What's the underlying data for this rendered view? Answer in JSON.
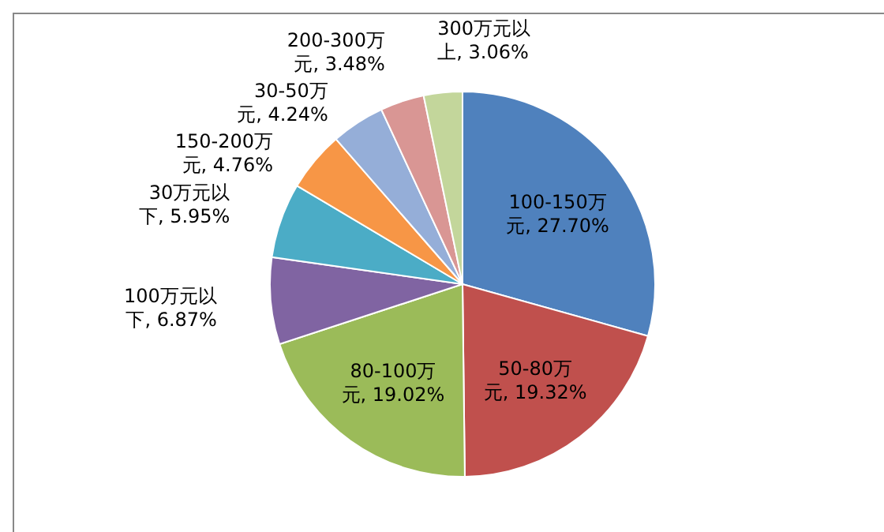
{
  "chart_data": {
    "type": "pie",
    "categories": [
      "100-150万元",
      "50-80万元",
      "80-100万元",
      "100万元以下",
      "30万元以下",
      "150-200万元",
      "30-50万元",
      "200-300万元",
      "300万元以上"
    ],
    "values": [
      27.7,
      19.32,
      19.02,
      6.87,
      5.95,
      4.76,
      4.24,
      3.48,
      3.06
    ],
    "value_labels": [
      "27.70%",
      "19.32%",
      "19.02%",
      "6.87%",
      "5.95%",
      "4.76%",
      "4.24%",
      "3.48%",
      "3.06%"
    ],
    "colors": [
      "#4f81bd",
      "#c0504d",
      "#9bbb59",
      "#8064a2",
      "#4bacc6",
      "#f79646",
      "#95aed8",
      "#d99694",
      "#c3d69b"
    ]
  }
}
